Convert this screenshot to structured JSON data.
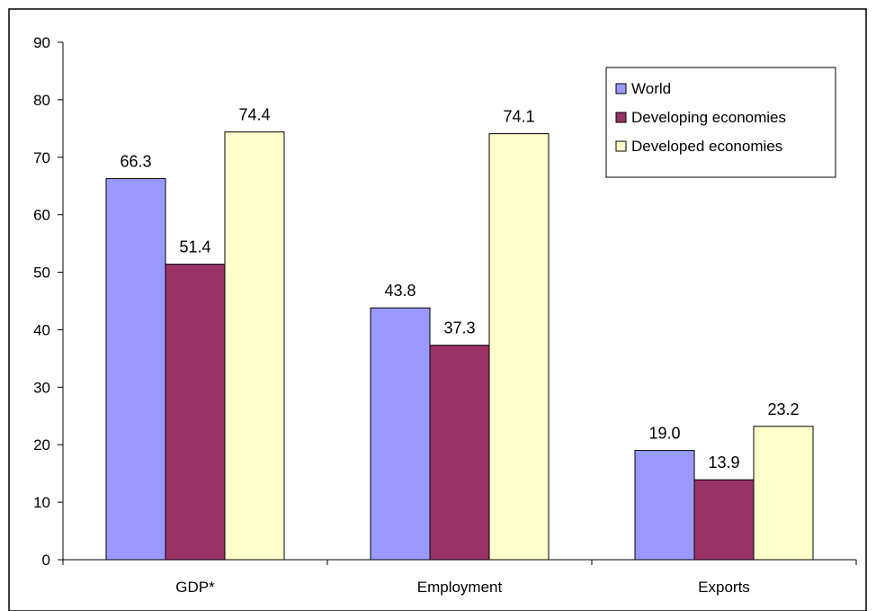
{
  "chart_data": {
    "type": "bar",
    "title": "",
    "xlabel": "",
    "ylabel": "",
    "categories": [
      "GDP*",
      "Employment",
      "Exports"
    ],
    "series": [
      {
        "name": "World",
        "values": [
          66.3,
          43.8,
          19.0
        ],
        "labels": [
          "66.3",
          "43.8",
          "19.0"
        ],
        "color": "#9999ff"
      },
      {
        "name": "Developing economies",
        "values": [
          51.4,
          37.3,
          13.9
        ],
        "labels": [
          "51.4",
          "37.3",
          "13.9"
        ],
        "color": "#993366"
      },
      {
        "name": "Developed economies",
        "values": [
          74.4,
          74.1,
          23.2
        ],
        "labels": [
          "74.4",
          "74.1",
          "23.2"
        ],
        "color": "#ffffcc"
      }
    ],
    "ylim": [
      0,
      90
    ],
    "yticks": [
      0,
      10,
      20,
      30,
      40,
      50,
      60,
      70,
      80,
      90
    ],
    "grid": false,
    "legend_position": "top-right"
  }
}
